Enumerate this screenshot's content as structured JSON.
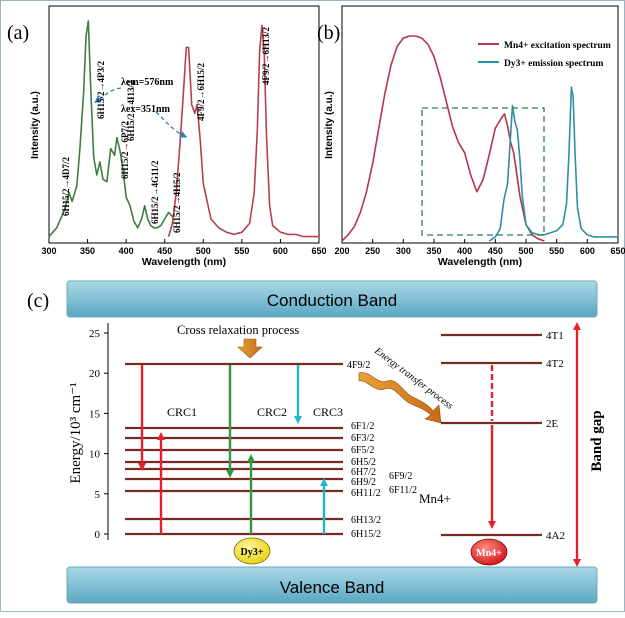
{
  "panels": {
    "a": {
      "tag": "(a)",
      "xlabel": "Wavelength (nm)",
      "ylabel": "Intensity (a.u.)",
      "xticks": [
        "300",
        "350",
        "400",
        "450",
        "500",
        "550",
        "600",
        "650"
      ],
      "em_label": "λem=576nm",
      "ex_label": "λex=351nm",
      "trans": {
        "t1": "6H15/2→4D7/2",
        "t2": "6H15/2→4P3/2",
        "t3": "6H15/2→6P7/2",
        "t4": "6H15/2→4I13/2",
        "t5": "6H15/2→4G11/2",
        "t6": "6H15/2→4I15/2",
        "t7": "4F9/2→6H15/2",
        "t8": "4F9/2→6H13/2"
      }
    },
    "b": {
      "tag": "(b)",
      "xlabel": "Wavelength (nm)",
      "ylabel": "Intensity (a.u.)",
      "xticks": [
        "200",
        "250",
        "300",
        "350",
        "400",
        "450",
        "500",
        "550",
        "600",
        "650"
      ],
      "legend": [
        "Mn4+ excitation spectrum",
        "Dy3+ emission spectrum"
      ]
    },
    "c": {
      "tag": "(c)",
      "conduction_band": "Conduction Band",
      "valence_band": "Valence Band",
      "ylabel": "Energy/10³ cm⁻¹",
      "yticks": [
        "25",
        "20",
        "15",
        "10",
        "5",
        "0"
      ],
      "cross_relaxation": "Cross relaxation process",
      "energy_transfer": "Energy transfer process",
      "crc": [
        "CRC1",
        "CRC2",
        "CRC3"
      ],
      "mn_level_label": "Mn4+",
      "band_gap": "Band gap",
      "dy_ball": "Dy3+",
      "mn_ball": "Mn4+",
      "dy_levels": [
        "4F9/2",
        "6F1/2",
        "6F3/2",
        "6F5/2",
        "6H5/2",
        "6H7/2",
        "6H9/2",
        "6F9/2",
        "6H11/2",
        "6F11/2",
        "6H13/2",
        "6H15/2"
      ],
      "mn_levels": [
        "4T1",
        "4T2",
        "2E",
        "4A2"
      ]
    }
  },
  "colors": {
    "excitation_green": "#3e7d3e",
    "emission_red": "#b5404b",
    "mn_excitation": "#b8334a",
    "dy_emission": "#2f8fa6",
    "level": "#7a2a24",
    "band_top": "#9fd0de",
    "band_bot": "#5fa9c4",
    "arrow_red": "#e8202a",
    "arrow_green": "#2e9a3c",
    "arrow_cyan": "#1fb8c9",
    "dy_ball": "#f0e21b",
    "mn_ball": "#e02222"
  },
  "chart_data": [
    {
      "type": "line",
      "panel": "a",
      "xlabel": "Wavelength (nm)",
      "ylabel": "Intensity (a.u.)",
      "xlim": [
        300,
        650
      ],
      "series": [
        {
          "values_x": [
            300,
            310,
            320,
            326,
            330,
            336,
            340,
            345,
            348,
            351,
            354,
            358,
            362,
            366,
            370,
            375,
            380,
            385,
            388,
            392,
            396,
            400,
            405,
            410,
            415,
            420,
            424,
            428,
            432,
            436,
            440,
            445,
            450,
            455,
            460
          ],
          "values_y": [
            0.02,
            0.06,
            0.14,
            0.22,
            0.18,
            0.25,
            0.42,
            0.68,
            0.93,
            1.0,
            0.7,
            0.38,
            0.3,
            0.36,
            0.28,
            0.27,
            0.42,
            0.39,
            0.47,
            0.41,
            0.32,
            0.2,
            0.16,
            0.09,
            0.06,
            0.1,
            0.16,
            0.1,
            0.07,
            0.06,
            0.06,
            0.07,
            0.1,
            0.13,
            0.11
          ]
        },
        {
          "values_x": [
            455,
            460,
            465,
            470,
            474,
            478,
            481,
            485,
            489,
            492,
            496,
            500,
            510,
            520,
            530,
            540,
            550,
            560,
            566,
            570,
            573,
            576,
            579,
            582,
            586,
            590,
            600,
            610,
            620,
            630,
            640,
            650
          ],
          "values_y": [
            0.02,
            0.08,
            0.22,
            0.45,
            0.66,
            0.88,
            0.88,
            0.62,
            0.58,
            0.62,
            0.46,
            0.26,
            0.1,
            0.06,
            0.04,
            0.03,
            0.04,
            0.08,
            0.22,
            0.5,
            0.86,
            0.98,
            0.86,
            0.48,
            0.16,
            0.07,
            0.04,
            0.03,
            0.03,
            0.02,
            0.02,
            0.02
          ]
        }
      ]
    },
    {
      "type": "line",
      "panel": "b",
      "xlabel": "Wavelength (nm)",
      "ylabel": "Intensity (a.u.)",
      "xlim": [
        200,
        650
      ],
      "series": [
        {
          "name": "Mn4+ excitation spectrum",
          "values_x": [
            200,
            210,
            220,
            230,
            240,
            250,
            260,
            270,
            280,
            290,
            300,
            310,
            320,
            330,
            340,
            350,
            360,
            370,
            380,
            390,
            400,
            410,
            420,
            430,
            440,
            450,
            460,
            465,
            470,
            475,
            480,
            490,
            500,
            510,
            520,
            530
          ],
          "values_y": [
            0.0,
            0.03,
            0.07,
            0.14,
            0.24,
            0.38,
            0.55,
            0.72,
            0.86,
            0.95,
            0.99,
            1.0,
            1.0,
            0.99,
            0.96,
            0.9,
            0.8,
            0.68,
            0.56,
            0.48,
            0.43,
            0.32,
            0.24,
            0.3,
            0.42,
            0.55,
            0.6,
            0.62,
            0.56,
            0.48,
            0.43,
            0.22,
            0.08,
            0.03,
            0.01,
            0.0
          ]
        },
        {
          "name": "Dy3+ emission spectrum",
          "values_x": [
            440,
            450,
            458,
            464,
            470,
            474,
            478,
            482,
            486,
            490,
            494,
            500,
            510,
            520,
            530,
            540,
            550,
            560,
            566,
            570,
            574,
            577,
            580,
            584,
            590,
            600,
            610,
            620,
            630,
            640,
            650
          ],
          "values_y": [
            0.0,
            0.02,
            0.06,
            0.2,
            0.28,
            0.48,
            0.66,
            0.58,
            0.54,
            0.4,
            0.22,
            0.08,
            0.04,
            0.03,
            0.03,
            0.04,
            0.05,
            0.08,
            0.18,
            0.42,
            0.75,
            0.7,
            0.42,
            0.16,
            0.06,
            0.03,
            0.02,
            0.02,
            0.02,
            0.02,
            0.02
          ]
        }
      ]
    }
  ]
}
